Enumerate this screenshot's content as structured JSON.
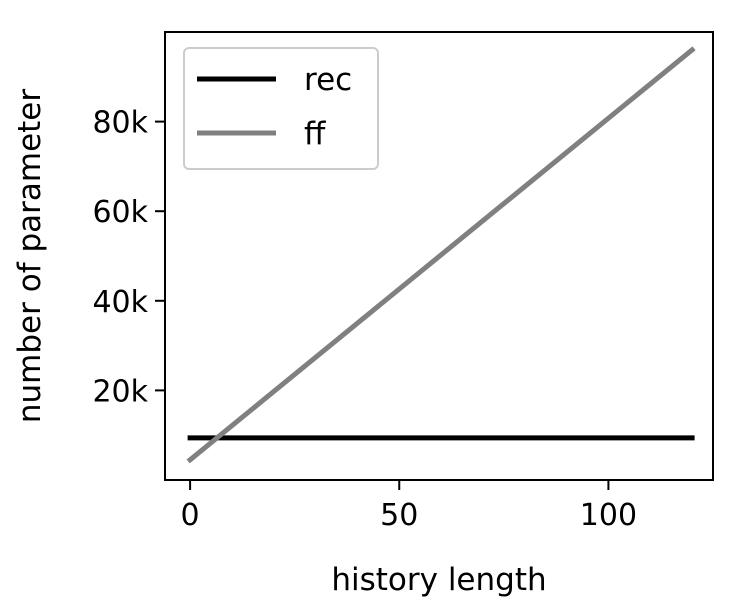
{
  "chart_data": {
    "type": "line",
    "title": "",
    "xlabel": "history length",
    "ylabel": "number of parameter",
    "xlim": [
      -6,
      125
    ],
    "ylim": [
      0,
      100000
    ],
    "x_ticks": [
      {
        "value": 0,
        "label": "0"
      },
      {
        "value": 50,
        "label": "50"
      },
      {
        "value": 100,
        "label": "100"
      }
    ],
    "y_ticks": [
      {
        "value": 20000,
        "label": "20k"
      },
      {
        "value": 40000,
        "label": "40k"
      },
      {
        "value": 60000,
        "label": "60k"
      },
      {
        "value": 80000,
        "label": "80k"
      }
    ],
    "grid": false,
    "legend_position": "top-left",
    "series": [
      {
        "name": "rec",
        "color": "#000000",
        "x": [
          0,
          120
        ],
        "y": [
          9400,
          9400
        ]
      },
      {
        "name": "ff",
        "color": "#808080",
        "x": [
          0,
          120
        ],
        "y": [
          4500,
          96000
        ]
      }
    ]
  }
}
